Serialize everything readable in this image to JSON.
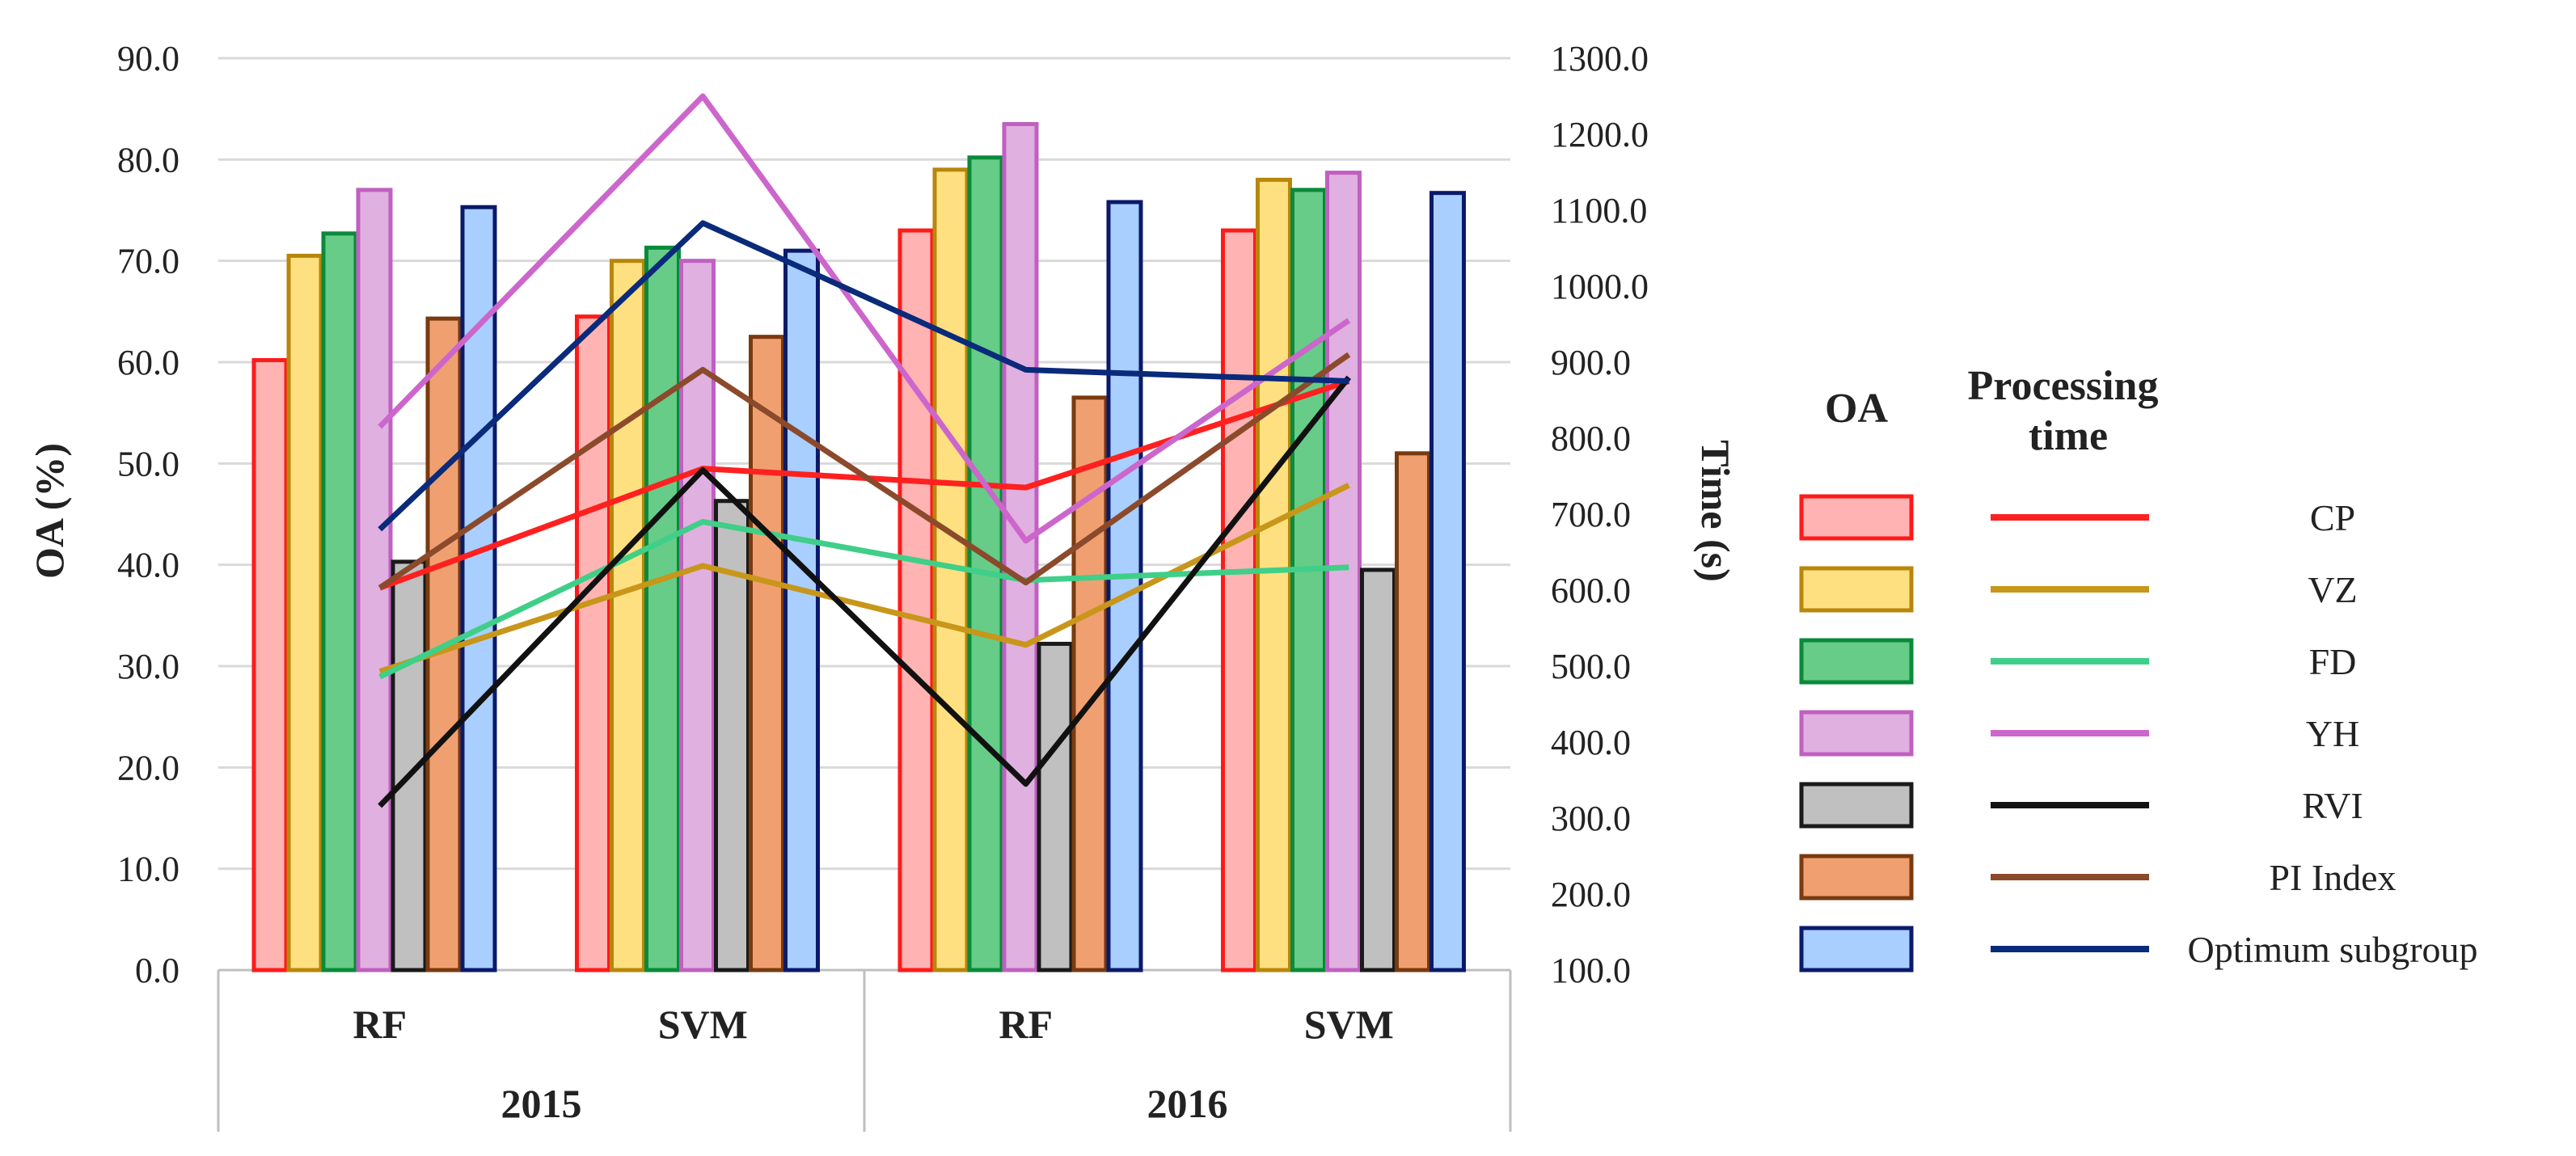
{
  "chart_data": {
    "type": "bar",
    "subtype": "combo bar + line (dual axis)",
    "groups": [
      {
        "label": "2015",
        "categories": [
          "RF",
          "SVM"
        ]
      },
      {
        "label": "2016",
        "categories": [
          "RF",
          "SVM"
        ]
      }
    ],
    "categories": [
      "RF",
      "SVM",
      "RF",
      "SVM"
    ],
    "y_left": {
      "label": "OA (%)",
      "ticks": [
        "0.0",
        "10.0",
        "20.0",
        "30.0",
        "40.0",
        "50.0",
        "60.0",
        "70.0",
        "80.0",
        "90.0"
      ],
      "range": [
        0,
        90
      ]
    },
    "y_right": {
      "label": "Time (s)",
      "ticks": [
        "100.0",
        "200.0",
        "300.0",
        "400.0",
        "500.0",
        "600.0",
        "700.0",
        "800.0",
        "900.0",
        "1000.0",
        "1100.0",
        "1200.0",
        "1300.0"
      ],
      "range": [
        100,
        1300
      ]
    },
    "grid": true,
    "legend": {
      "position": "right",
      "oa_header": "OA",
      "time_header": "Processing time"
    },
    "series": [
      {
        "name": "CP",
        "bar_fill": "#ffb3b3",
        "bar_stroke": "#ff1a1a",
        "line_color": "#ff2020",
        "oa": [
          60.2,
          64.5,
          73.0,
          73.0
        ],
        "time": [
          603,
          760,
          735,
          875
        ]
      },
      {
        "name": "VZ",
        "bar_fill": "#ffe080",
        "bar_stroke": "#b8860b",
        "line_color": "#c8961a",
        "oa": [
          70.5,
          70.0,
          79.0,
          78.0
        ],
        "time": [
          493,
          632,
          528,
          738
        ]
      },
      {
        "name": "FD",
        "bar_fill": "#66cc88",
        "bar_stroke": "#0a8a3a",
        "line_color": "#3fcf88",
        "oa": [
          72.7,
          71.3,
          80.2,
          77.0
        ],
        "time": [
          486,
          690,
          613,
          630
        ]
      },
      {
        "name": "YH",
        "bar_fill": "#e0b0e0",
        "bar_stroke": "#c060c0",
        "line_color": "#cc66cc",
        "oa": [
          77.0,
          70.0,
          83.5,
          78.7
        ],
        "time": [
          815,
          1250,
          665,
          955
        ]
      },
      {
        "name": "RVI",
        "bar_fill": "#c0c0c0",
        "bar_stroke": "#1a1a1a",
        "line_color": "#111111",
        "oa": [
          40.3,
          46.3,
          32.2,
          39.5
        ],
        "time": [
          316,
          758,
          345,
          880
        ]
      },
      {
        "name": "PI Index",
        "bar_fill": "#f0a070",
        "bar_stroke": "#7a3a10",
        "line_color": "#8b4a2b",
        "oa": [
          64.3,
          62.5,
          56.5,
          51.0
        ],
        "time": [
          603,
          890,
          610,
          910
        ]
      },
      {
        "name": "Optimum subgroup",
        "bar_fill": "#a8cfff",
        "bar_stroke": "#0a1a6a",
        "line_color": "#0a2a7a",
        "oa": [
          75.3,
          71.0,
          75.8,
          76.7
        ],
        "time": [
          680,
          1083,
          890,
          875
        ]
      }
    ]
  }
}
